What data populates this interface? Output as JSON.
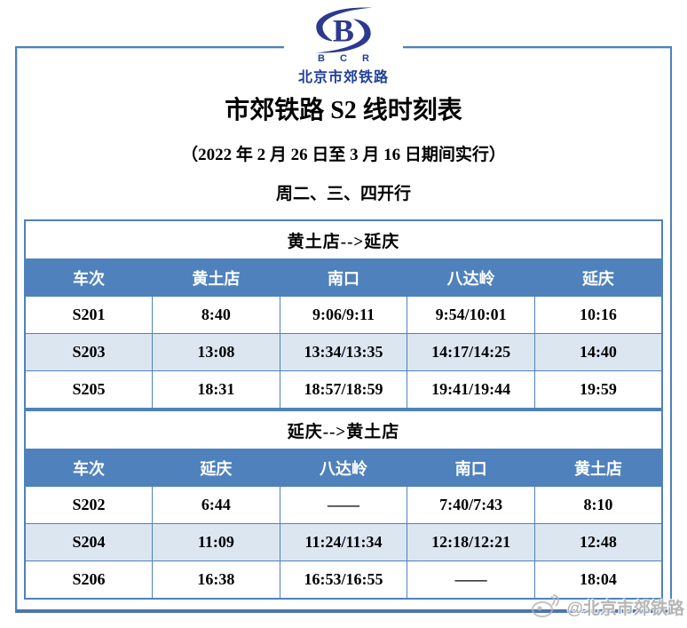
{
  "logo": {
    "abbr": "B C R",
    "name": "北京市郊铁路"
  },
  "title": "市郊铁路 S2 线时刻表",
  "subtitle": "（2022 年 2 月 26 日至 3 月 16 日期间实行）",
  "service_days": "周二、三、四开行",
  "tables": [
    {
      "direction": "黄土店-->延庆",
      "columns": [
        "车次",
        "黄土店",
        "南口",
        "八达岭",
        "延庆"
      ],
      "rows": [
        [
          "S201",
          "8:40",
          "9:06/9:11",
          "9:54/10:01",
          "10:16"
        ],
        [
          "S203",
          "13:08",
          "13:34/13:35",
          "14:17/14:25",
          "14:40"
        ],
        [
          "S205",
          "18:31",
          "18:57/18:59",
          "19:41/19:44",
          "19:59"
        ]
      ]
    },
    {
      "direction": "延庆-->黄土店",
      "columns": [
        "车次",
        "延庆",
        "八达岭",
        "南口",
        "黄土店"
      ],
      "rows": [
        [
          "S202",
          "6:44",
          "——",
          "7:40/7:43",
          "8:10"
        ],
        [
          "S204",
          "11:09",
          "11:24/11:34",
          "12:18/12:21",
          "12:48"
        ],
        [
          "S206",
          "16:38",
          "16:53/16:55",
          "——",
          "18:04"
        ]
      ]
    }
  ],
  "watermark": {
    "handle": "@北京市郊铁路"
  },
  "colors": {
    "header_blue": "#4f81bd",
    "band_blue": "#dce6f1",
    "border_blue": "#4f81bd",
    "logo_blue": "#2b3990",
    "watermark_gray": "#b3b3b3"
  }
}
